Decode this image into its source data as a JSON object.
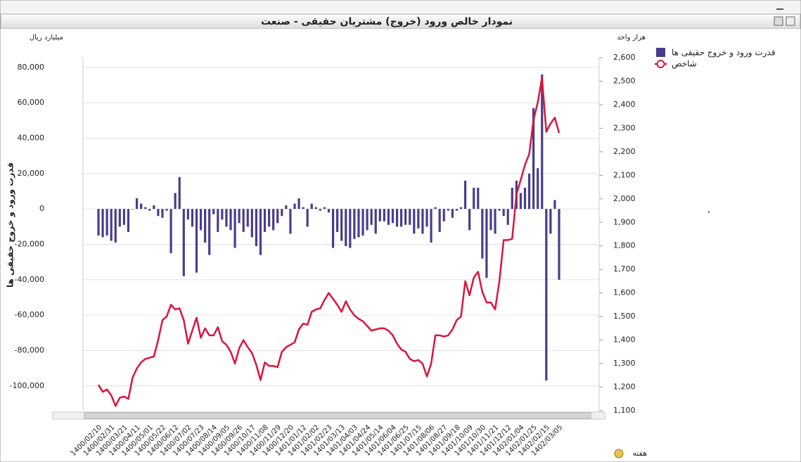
{
  "chart_data": {
    "type": "combo",
    "title": "نمودار خالص ورود (خروج) مشتریان حقیقی - صنعت",
    "y_unit": "میلیارد ریال",
    "y2_unit": "هزار واحد",
    "y_label": "قدرت ورود و خروج حقیقی ها",
    "x_label": "هفته",
    "legend": "right",
    "grid": true,
    "categories": [
      "1400/02/10",
      null,
      null,
      "1400/02/31",
      null,
      null,
      "1400/03/21",
      null,
      null,
      "1400/04/11",
      null,
      null,
      "1400/05/01",
      null,
      null,
      "1400/05/22",
      null,
      null,
      "1400/06/12",
      null,
      null,
      "1400/07/02",
      null,
      null,
      "1400/07/23",
      null,
      null,
      "1400/08/14",
      null,
      null,
      "1400/09/05",
      null,
      null,
      "1400/09/26",
      null,
      null,
      "1400/10/17",
      null,
      null,
      "1400/11/08",
      null,
      null,
      "1400/11/29",
      null,
      null,
      "1400/12/20",
      null,
      null,
      "1401/01/12",
      null,
      null,
      "1401/02/02",
      null,
      null,
      "1401/02/23",
      null,
      null,
      "1401/03/13",
      null,
      null,
      "1401/04/03",
      null,
      null,
      "1401/04/24",
      null,
      null,
      "1401/05/14",
      null,
      null,
      "1401/06/04",
      null,
      null,
      "1401/06/25",
      null,
      null,
      "1401/07/15",
      null,
      null,
      "1401/08/06",
      null,
      null,
      "1401/08/27",
      null,
      null,
      "1401/09/18",
      null,
      null,
      "1401/10/09",
      null,
      null,
      "1401/10/30",
      null,
      null,
      "1401/11/21",
      null,
      null,
      "1401/12/12",
      null,
      null,
      "1402/01/04",
      null,
      null,
      "1402/01/25",
      null,
      null,
      "1402/02/15",
      null,
      null,
      "1402/03/05"
    ],
    "series": [
      {
        "name": "قدرت ورود و خروج حقیقی ها",
        "type": "bar",
        "color": "#483d8b",
        "values": [
          -15000,
          -16000,
          -15000,
          -18000,
          -19000,
          -10000,
          -9000,
          -13000,
          0,
          6000,
          3000,
          1000,
          -1000,
          2000,
          -4000,
          -5000,
          -1000,
          -25000,
          9000,
          18000,
          -38000,
          -6000,
          -10000,
          -36000,
          -12000,
          -19000,
          -26000,
          -3000,
          -13000,
          -6000,
          -10000,
          -12000,
          -22000,
          -8000,
          -13000,
          -10000,
          -16000,
          -21000,
          -26000,
          -13000,
          -10000,
          -12000,
          -8000,
          -4000,
          2000,
          -14000,
          3000,
          6000,
          1000,
          -10000,
          3000,
          1000,
          -1000,
          1000,
          -2000,
          -22000,
          -13000,
          -18000,
          -21000,
          -22000,
          -17000,
          -16000,
          -15000,
          -12000,
          -9000,
          -14000,
          -7000,
          -7000,
          -9000,
          -8000,
          -10000,
          -10000,
          -9000,
          -9000,
          -14000,
          -11000,
          -14000,
          -10000,
          -19000,
          1000,
          -13000,
          -7000,
          -1000,
          -5000,
          -1000,
          1000,
          16000,
          -12000,
          12000,
          12000,
          -28000,
          -39000,
          -12000,
          -14000,
          -1000,
          -4000,
          -9000,
          12000,
          16000,
          9000,
          12000,
          20000,
          57000,
          23000,
          76000,
          -97000,
          -14000,
          5000,
          -40000
        ]
      },
      {
        "name": "شاخص",
        "type": "line",
        "axis": "y2",
        "color": "#dc143c",
        "values": [
          1210,
          1180,
          1190,
          1165,
          1120,
          1155,
          1160,
          1150,
          1240,
          1280,
          1305,
          1320,
          1325,
          1330,
          1400,
          1485,
          1500,
          1550,
          1530,
          1535,
          1485,
          1385,
          1440,
          1495,
          1410,
          1450,
          1420,
          1420,
          1455,
          1395,
          1380,
          1350,
          1300,
          1365,
          1400,
          1370,
          1345,
          1295,
          1230,
          1305,
          1290,
          1290,
          1285,
          1350,
          1370,
          1380,
          1390,
          1445,
          1470,
          1465,
          1520,
          1530,
          1535,
          1570,
          1600,
          1575,
          1550,
          1520,
          1565,
          1530,
          1505,
          1490,
          1480,
          1460,
          1440,
          1445,
          1450,
          1450,
          1440,
          1420,
          1385,
          1360,
          1350,
          1320,
          1310,
          1315,
          1300,
          1245,
          1300,
          1420,
          1420,
          1415,
          1420,
          1445,
          1485,
          1500,
          1650,
          1590,
          1665,
          1690,
          1605,
          1560,
          1560,
          1530,
          1650,
          1825,
          1825,
          1830,
          2020,
          2080,
          2145,
          2190,
          2335,
          2410,
          2515,
          2285,
          2320,
          2345,
          2280
        ]
      }
    ],
    "ylim": [
      -114000,
      85500
    ],
    "yticks": [
      {
        "value": 80000,
        "label": "80,000"
      },
      {
        "value": 60000,
        "label": "60,000"
      },
      {
        "value": 40000,
        "label": "40,000"
      },
      {
        "value": 20000,
        "label": "20,000"
      },
      0,
      {
        "value": -20000,
        "label": "-20,000"
      },
      {
        "value": -40000,
        "label": "-40,000"
      },
      {
        "value": -60000,
        "label": "-60,000"
      },
      {
        "value": -80000,
        "label": "-80,000"
      },
      {
        "value": -100000,
        "label": "-100,000"
      }
    ],
    "y2lim": [
      1100,
      2600
    ],
    "y2ticks": [
      {
        "value": 1100,
        "label": "1,100"
      },
      {
        "value": 1200,
        "label": "1,200"
      },
      {
        "value": 1300,
        "label": "1,300"
      },
      {
        "value": 1400,
        "label": "1,400"
      },
      {
        "value": 1500,
        "label": "1,500"
      },
      {
        "value": 1600,
        "label": "1,600"
      },
      {
        "value": 1700,
        "label": "1,700"
      },
      {
        "value": 1800,
        "label": "1,800"
      },
      {
        "value": 1900,
        "label": "1,900"
      },
      {
        "value": 2000,
        "label": "2,000"
      },
      {
        "value": 2100,
        "label": "2,100"
      },
      {
        "value": 2200,
        "label": "2,200"
      },
      {
        "value": 2300,
        "label": "2,300"
      },
      {
        "value": 2400,
        "label": "2,400"
      },
      {
        "value": 2500,
        "label": "2,500"
      },
      {
        "value": 2600,
        "label": "2,600"
      }
    ]
  }
}
